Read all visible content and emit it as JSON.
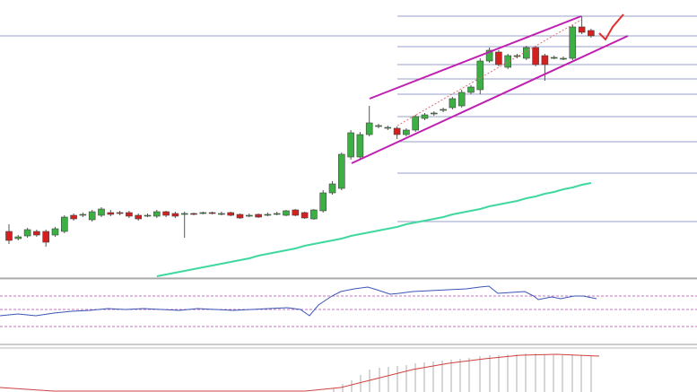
{
  "chart_data": {
    "type": "candlestick",
    "open": [
      52,
      44,
      47,
      52,
      52,
      48,
      52,
      70,
      70,
      65,
      70,
      73,
      73,
      73,
      70,
      70,
      69,
      74,
      72,
      72,
      72,
      73,
      73,
      72,
      73,
      71,
      70,
      71,
      71,
      72,
      70,
      76,
      73,
      66,
      75,
      95,
      100,
      135,
      135,
      160,
      169,
      167,
      167,
      160,
      165,
      178,
      183,
      187,
      190,
      192,
      207,
      210,
      242,
      252,
      235,
      247,
      245,
      257,
      248,
      246,
      245,
      245,
      280,
      276
    ],
    "high": [
      60,
      48,
      56,
      54,
      54,
      57,
      70,
      72,
      73,
      76,
      79,
      76,
      75,
      75,
      72,
      72,
      76,
      75,
      74,
      74,
      73,
      74,
      74,
      74,
      74,
      72,
      72,
      72,
      73,
      74,
      76,
      77,
      74,
      77,
      98,
      108,
      140,
      165,
      163,
      192,
      172,
      170,
      169,
      167,
      182,
      184,
      186,
      190,
      202,
      210,
      215,
      245,
      257,
      254,
      250,
      250,
      259,
      259,
      250,
      248,
      247,
      282,
      292,
      278
    ],
    "low": [
      38,
      42,
      45,
      46,
      35,
      46,
      50,
      64,
      68,
      63,
      68,
      69,
      70,
      67,
      64,
      68,
      67,
      68,
      67,
      45,
      70,
      71,
      71,
      70,
      69,
      66,
      68,
      67,
      69,
      70,
      69,
      69,
      66,
      65,
      73,
      93,
      98,
      132,
      133,
      158,
      167,
      165,
      155,
      158,
      163,
      176,
      181,
      185,
      188,
      190,
      205,
      205,
      240,
      236,
      233,
      245,
      243,
      236,
      220,
      244,
      243,
      243,
      272,
      268
    ],
    "close": [
      42,
      46,
      54,
      48,
      40,
      55,
      68,
      66,
      71,
      74,
      77,
      71,
      72,
      69,
      66,
      70,
      74,
      70,
      69,
      72,
      71,
      73,
      72,
      72,
      70,
      67,
      70,
      68,
      71,
      72,
      75,
      70,
      67,
      76,
      95,
      105,
      138,
      162,
      160,
      173,
      170,
      168,
      160,
      165,
      180,
      182,
      184,
      188,
      200,
      207,
      213,
      242,
      254,
      238,
      248,
      248,
      257,
      238,
      238,
      246,
      245,
      280,
      274,
      270
    ],
    "up_color": "#3cb043",
    "down_color": "#d62020",
    "ma": [
      null,
      null,
      null,
      null,
      null,
      null,
      null,
      null,
      null,
      null,
      null,
      null,
      null,
      null,
      null,
      null,
      2,
      4,
      6,
      8,
      10,
      12,
      14,
      16,
      18,
      20,
      22,
      25,
      27,
      29,
      31,
      33,
      36,
      38,
      40,
      42,
      44,
      47,
      49,
      51,
      53,
      55,
      57,
      60,
      62,
      64,
      66,
      68,
      71,
      73,
      75,
      77,
      80,
      82,
      84,
      86,
      89,
      91,
      94,
      96,
      99,
      101,
      104,
      106
    ],
    "ma_color": "#3fd9a0",
    "levels": [
      292,
      258,
      238,
      222,
      205,
      180,
      152,
      117,
      63
    ],
    "hline": 270,
    "ylim": [
      0,
      310
    ]
  }
}
